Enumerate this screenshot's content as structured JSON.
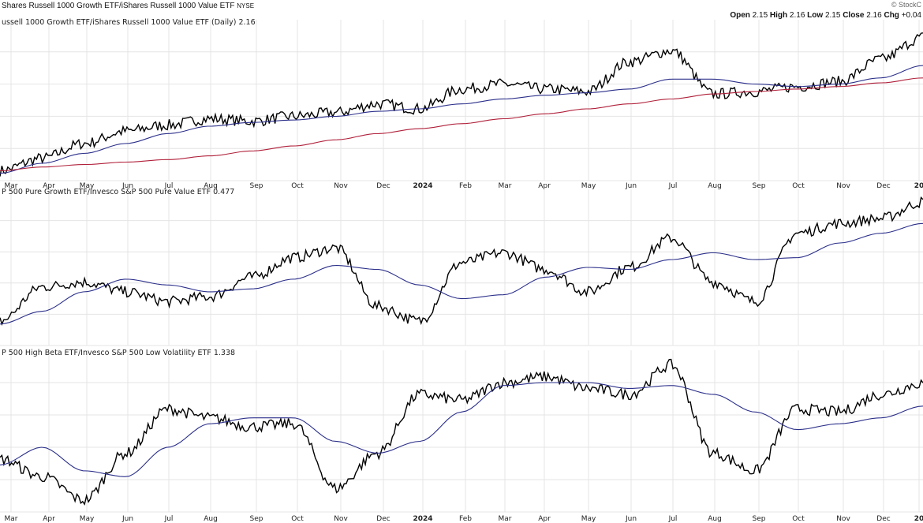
{
  "header": {
    "title": "Shares Russell 1000 Growth ETF/iShares Russell 1000 Value ETF",
    "exchange": "NYSE",
    "watermark": "© StockC",
    "ohlc": [
      {
        "label": "Open",
        "value": "2.15"
      },
      {
        "label": "High",
        "value": "2.16"
      },
      {
        "label": "Low",
        "value": "2.15"
      },
      {
        "label": "Close",
        "value": "2.16"
      },
      {
        "label": "Chg",
        "value": "+0.04"
      }
    ]
  },
  "colors": {
    "price": "#000000",
    "ma_short": "#2b2f8a",
    "ma_long": "#b0203a",
    "grid": "#e4e4e4"
  },
  "x_axis": {
    "top_labels": [
      "Mar",
      "Apr",
      "May",
      "Jun",
      "Jul",
      "Aug",
      "Sep",
      "Oct",
      "Nov",
      "Dec",
      "2024",
      "Feb",
      "Mar",
      "Apr",
      "May",
      "Jun",
      "Jul",
      "Aug",
      "Sep",
      "Oct",
      "Nov",
      "Dec",
      "20"
    ],
    "bottom_labels": [
      "Mar",
      "Apr",
      "May",
      "Jun",
      "Jul",
      "Aug",
      "Sep",
      "Oct",
      "Nov",
      "Dec",
      "2024",
      "Feb",
      "Mar",
      "Apr",
      "May",
      "Jun",
      "Jul",
      "Aug",
      "Sep",
      "Oct",
      "Nov",
      "Dec",
      "20"
    ]
  },
  "chart_data": [
    {
      "type": "line",
      "title": "ussell 1000 Growth ETF/iShares Russell 1000 Value ETF (Daily) 2.16",
      "x": [
        0,
        1,
        2,
        3,
        4,
        5,
        6,
        7,
        8,
        9,
        10,
        11,
        12,
        13,
        14,
        15,
        16,
        17,
        18,
        19,
        20,
        21,
        22
      ],
      "series": [
        {
          "values": [
            1.08,
            1.18,
            1.3,
            1.4,
            1.45,
            1.5,
            1.48,
            1.52,
            1.55,
            1.62,
            1.58,
            1.74,
            1.78,
            1.74,
            1.72,
            1.96,
            2.05,
            1.7,
            1.72,
            1.76,
            1.8,
            1.98,
            2.16
          ]
        },
        {
          "values": [
            1.06,
            1.14,
            1.22,
            1.3,
            1.38,
            1.44,
            1.47,
            1.49,
            1.52,
            1.56,
            1.58,
            1.62,
            1.66,
            1.69,
            1.71,
            1.74,
            1.82,
            1.82,
            1.78,
            1.76,
            1.78,
            1.83,
            1.93
          ]
        },
        {
          "values": [
            1.08,
            1.11,
            1.13,
            1.15,
            1.17,
            1.2,
            1.24,
            1.28,
            1.33,
            1.38,
            1.42,
            1.46,
            1.5,
            1.54,
            1.58,
            1.62,
            1.66,
            1.7,
            1.72,
            1.74,
            1.76,
            1.79,
            1.83
          ]
        }
      ],
      "ylim": [
        1.0,
        2.3
      ]
    },
    {
      "type": "line",
      "title": "P 500 Pure Growth ETF/Invesco S&P 500 Pure Value ETF 0.477",
      "x": [
        0,
        1,
        2,
        3,
        4,
        5,
        6,
        7,
        8,
        9,
        10,
        11,
        12,
        13,
        14,
        15,
        16,
        17,
        18,
        19,
        20,
        21,
        22
      ],
      "series": [
        {
          "values": [
            0.355,
            0.39,
            0.395,
            0.385,
            0.375,
            0.38,
            0.4,
            0.42,
            0.43,
            0.37,
            0.355,
            0.415,
            0.425,
            0.408,
            0.385,
            0.41,
            0.44,
            0.395,
            0.375,
            0.445,
            0.455,
            0.46,
            0.477
          ]
        },
        {
          "values": [
            0.352,
            0.365,
            0.385,
            0.398,
            0.392,
            0.385,
            0.388,
            0.398,
            0.412,
            0.408,
            0.392,
            0.378,
            0.382,
            0.4,
            0.41,
            0.408,
            0.418,
            0.425,
            0.418,
            0.42,
            0.435,
            0.445,
            0.455
          ]
        }
      ],
      "ylim": [
        0.33,
        0.49
      ]
    },
    {
      "type": "line",
      "title": "P 500 High Beta ETF/Invesco S&P 500 Low Volatility ETF 1.338",
      "x": [
        0,
        1,
        2,
        3,
        4,
        5,
        6,
        7,
        8,
        9,
        10,
        11,
        12,
        13,
        14,
        15,
        16,
        17,
        18,
        19,
        20,
        21,
        22
      ],
      "series": [
        {
          "values": [
            1.08,
            1.02,
            0.94,
            1.1,
            1.25,
            1.22,
            1.19,
            1.2,
            0.98,
            1.1,
            1.3,
            1.28,
            1.34,
            1.36,
            1.32,
            1.3,
            1.4,
            1.1,
            1.04,
            1.25,
            1.24,
            1.3,
            1.338
          ]
        },
        {
          "values": [
            1.06,
            1.12,
            1.04,
            1.02,
            1.12,
            1.2,
            1.22,
            1.22,
            1.14,
            1.1,
            1.14,
            1.24,
            1.33,
            1.34,
            1.34,
            1.32,
            1.33,
            1.3,
            1.24,
            1.18,
            1.2,
            1.22,
            1.26
          ]
        }
      ],
      "ylim": [
        0.9,
        1.45
      ]
    }
  ]
}
